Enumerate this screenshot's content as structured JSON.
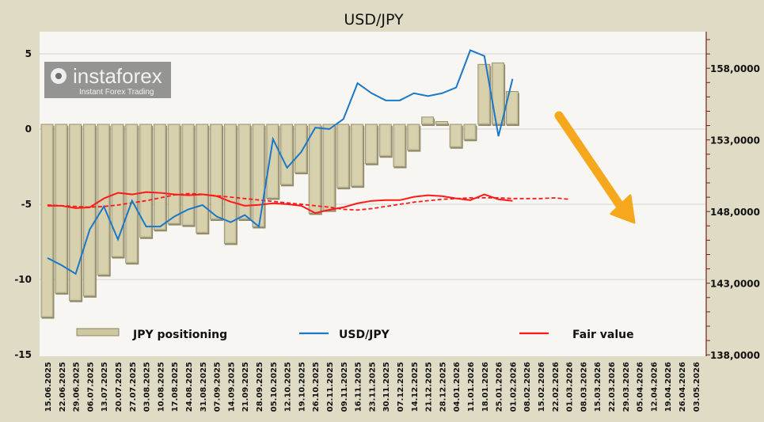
{
  "chart_data": {
    "type": "bar+line",
    "title": "USD/JPY",
    "x_dates": [
      "15.06.2025",
      "22.06.2025",
      "29.06.2025",
      "06.07.2025",
      "13.07.2025",
      "20.07.2025",
      "27.07.2025",
      "03.08.2025",
      "10.08.2025",
      "17.08.2025",
      "24.08.2025",
      "31.08.2025",
      "07.09.2025",
      "14.09.2025",
      "21.09.2025",
      "28.09.2025",
      "05.10.2025",
      "12.10.2025",
      "19.10.2025",
      "26.10.2025",
      "02.11.2025",
      "09.11.2025",
      "16.11.2025",
      "23.11.2025",
      "30.11.2025",
      "07.12.2025",
      "14.12.2025",
      "21.12.2025",
      "28.12.2025",
      "04.01.2026",
      "11.01.2026",
      "18.01.2026",
      "25.01.2026",
      "01.02.2026",
      "08.02.2026",
      "15.02.2026",
      "22.02.2026",
      "01.03.2026",
      "08.03.2026",
      "15.03.2026",
      "22.03.2026",
      "29.03.2026",
      "05.04.2026",
      "12.04.2026",
      "19.04.2026",
      "26.04.2026",
      "03.05.2026"
    ],
    "left_axis": {
      "ylim": [
        -15,
        5
      ],
      "ticks": [
        "5",
        "0",
        "-5",
        "-10",
        "-15"
      ],
      "tick_values": [
        5,
        0,
        -5,
        -10,
        -15
      ]
    },
    "right_axis": {
      "ylim": [
        138000,
        159500
      ],
      "ticks": [
        "158,0000",
        "153,0000",
        "148,0000",
        "143,0000",
        "138,0000"
      ],
      "tick_values": [
        158000,
        153000,
        148000,
        143000,
        138000
      ]
    },
    "grid": true,
    "legend_placement": "bottom",
    "series": [
      {
        "name": "JPY positioning",
        "type": "bar",
        "axis": "left",
        "color": "#cfc7a0",
        "values": [
          -12.5,
          -10.9,
          -11.4,
          -11.1,
          -9.7,
          -8.5,
          -8.9,
          -7.2,
          -6.7,
          -6.3,
          -6.4,
          -6.9,
          -6.0,
          -7.6,
          -6.0,
          -6.5,
          -4.6,
          -3.7,
          -2.9,
          -5.6,
          -5.4,
          -3.9,
          -3.8,
          -2.3,
          -1.8,
          -2.5,
          -1.4,
          0.8,
          0.5,
          -1.2,
          -0.7,
          4.3,
          4.4,
          2.5
        ]
      },
      {
        "name": "USD/JPY",
        "type": "line",
        "axis": "right",
        "color": "#1a78c8",
        "values": [
          144.8,
          144.3,
          143.7,
          146.8,
          148.4,
          146.1,
          148.8,
          147.0,
          147.0,
          147.7,
          148.2,
          148.5,
          147.7,
          147.3,
          147.8,
          147.0,
          153.1,
          151.1,
          152.2,
          153.9,
          153.8,
          154.5,
          157.0,
          156.3,
          155.8,
          155.8,
          156.3,
          156.1,
          156.3,
          156.7,
          159.3,
          158.9,
          153.3,
          157.3
        ]
      },
      {
        "name": "Fair value",
        "type": "line",
        "axis": "right",
        "color": "#ff1a1a",
        "values": [
          148.45,
          148.45,
          148.28,
          148.34,
          148.96,
          149.35,
          149.24,
          149.4,
          149.35,
          149.24,
          149.18,
          149.24,
          149.12,
          148.73,
          148.45,
          148.51,
          148.62,
          148.56,
          148.45,
          147.94,
          148.17,
          148.34,
          148.62,
          148.79,
          148.84,
          148.84,
          149.07,
          149.18,
          149.12,
          148.96,
          148.84,
          149.24,
          148.9,
          148.79
        ]
      },
      {
        "name": "Fair value trend",
        "type": "line-dashed",
        "axis": "right",
        "color": "#ff1a1a",
        "values": [
          148.5,
          148.45,
          148.4,
          148.35,
          148.4,
          148.5,
          148.65,
          148.8,
          149.0,
          149.2,
          149.3,
          149.25,
          149.15,
          149.05,
          148.95,
          148.85,
          148.75,
          148.65,
          148.55,
          148.45,
          148.35,
          148.2,
          148.15,
          148.25,
          148.4,
          148.55,
          148.7,
          148.8,
          148.9,
          148.95,
          149.0,
          149.0,
          149.0,
          148.95,
          148.95,
          148.95,
          149.0,
          148.9
        ]
      }
    ],
    "annotation": {
      "type": "arrow",
      "direction": "down-right",
      "color": "#f5a81c"
    }
  },
  "legend": {
    "positioning": "JPY positioning",
    "usdjpy": "USD/JPY",
    "fair_value": "Fair value"
  },
  "watermark": {
    "brand": "instaforex",
    "tagline": "Instant Forex Trading"
  }
}
